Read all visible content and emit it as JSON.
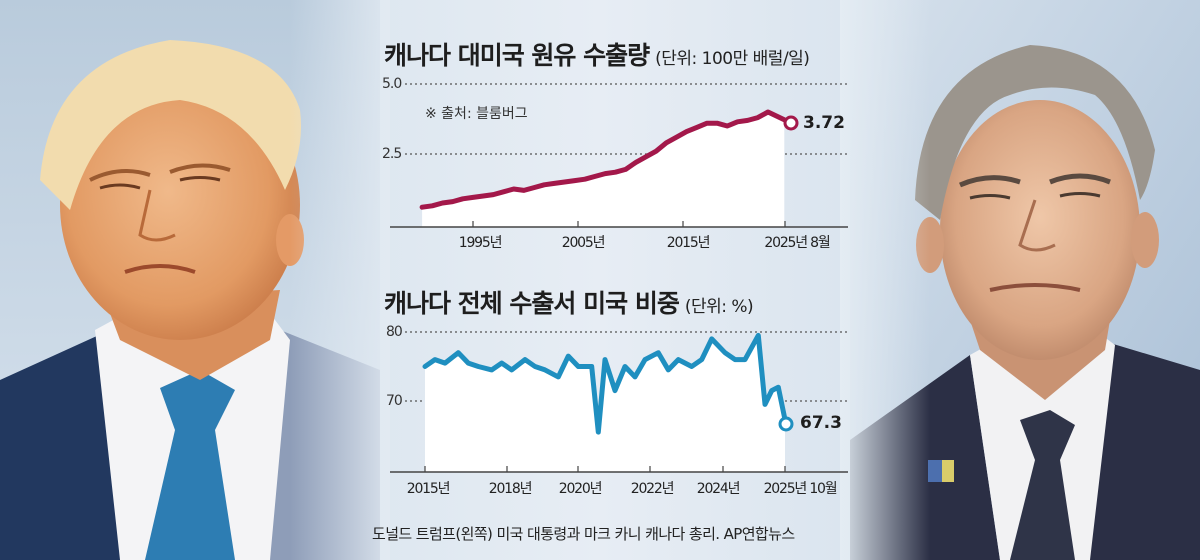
{
  "chart_data": [
    {
      "type": "area",
      "title": "캐나다 대미국 원유 수출량",
      "unit": "(단위: 100만 배럴/일)",
      "source_note": "※ 출처: 블룸버그",
      "xlabel": "",
      "ylabel": "",
      "y_ticks": [
        "5.0",
        "2.5"
      ],
      "ylim": [
        0,
        5.0
      ],
      "x_ticks": [
        "1995년",
        "2005년",
        "2015년",
        "2025년 8월"
      ],
      "grid": "dotted horizontal",
      "color": "#a3184a",
      "end_label": "3.72",
      "end_value": 3.72,
      "series": [
        {
          "name": "캐나다 대미국 원유 수출량",
          "x": [
            1990,
            1991,
            1992,
            1993,
            1994,
            1995,
            1996,
            1997,
            1998,
            1999,
            2000,
            2001,
            2002,
            2003,
            2004,
            2005,
            2006,
            2007,
            2008,
            2009,
            2010,
            2011,
            2012,
            2013,
            2014,
            2015,
            2016,
            2017,
            2018,
            2019,
            2020,
            2021,
            2022,
            2023,
            2024,
            2025.6
          ],
          "values": [
            0.6,
            0.65,
            0.75,
            0.8,
            0.9,
            0.95,
            1.0,
            1.05,
            1.15,
            1.25,
            1.2,
            1.3,
            1.4,
            1.45,
            1.5,
            1.55,
            1.6,
            1.7,
            1.8,
            1.85,
            1.95,
            2.2,
            2.4,
            2.6,
            2.9,
            3.1,
            3.3,
            3.45,
            3.6,
            3.6,
            3.5,
            3.65,
            3.7,
            3.8,
            4.0,
            3.72
          ]
        }
      ]
    },
    {
      "type": "area",
      "title": "캐나다 전체 수출서 미국 비중",
      "unit": "(단위: %)",
      "xlabel": "",
      "ylabel": "",
      "y_ticks": [
        "80",
        "70"
      ],
      "ylim": [
        60,
        80
      ],
      "x_ticks": [
        "2015년",
        "2018년",
        "2020년",
        "2022년",
        "2024년",
        "2025년 10월"
      ],
      "grid": "dotted horizontal",
      "color": "#1f8fc0",
      "end_label": "67.3",
      "end_value": 67.3,
      "series": [
        {
          "name": "캐나다 전체 수출서 미국 비중",
          "x": [
            2015.0,
            2015.3,
            2015.6,
            2016.0,
            2016.3,
            2016.6,
            2017.0,
            2017.3,
            2017.6,
            2018.0,
            2018.3,
            2018.6,
            2019.0,
            2019.3,
            2019.6,
            2020.0,
            2020.2,
            2020.4,
            2020.7,
            2021.0,
            2021.3,
            2021.6,
            2022.0,
            2022.3,
            2022.6,
            2023.0,
            2023.3,
            2023.6,
            2024.0,
            2024.3,
            2024.6,
            2025.0,
            2025.2,
            2025.4,
            2025.6,
            2025.8
          ],
          "values": [
            75.0,
            76.0,
            75.5,
            77.0,
            75.5,
            75.0,
            74.5,
            75.5,
            74.5,
            76.0,
            75.0,
            74.5,
            73.5,
            76.5,
            75.0,
            75.0,
            65.5,
            76.0,
            71.5,
            75.0,
            73.5,
            76.0,
            77.0,
            74.5,
            76.0,
            75.0,
            76.0,
            79.0,
            77.0,
            76.0,
            76.0,
            79.5,
            69.5,
            71.5,
            72.0,
            67.3
          ]
        }
      ]
    }
  ],
  "charts": {
    "top": {
      "title": "캐나다 대미국 원유 수출량",
      "unit": "(단위: 100만 배럴/일)",
      "source": "※ 출처: 블룸버그",
      "y_ticks": [
        "5.0",
        "2.5"
      ],
      "x_ticks": [
        "1995년",
        "2005년",
        "2015년",
        "2025년 8월"
      ],
      "end_label": "3.72"
    },
    "bottom": {
      "title": "캐나다 전체 수출서 미국 비중",
      "unit": "(단위: %)",
      "y_ticks": [
        "80",
        "70"
      ],
      "x_ticks": [
        "2015년",
        "2018년",
        "2020년",
        "2022년",
        "2024년",
        "2025년 10월"
      ],
      "end_label": "67.3"
    }
  },
  "caption": "도널드 트럼프(왼쪽) 미국 대통령과 마크 카니 캐나다 총리.   AP연합뉴스",
  "colors": {
    "oil_line": "#a3184a",
    "share_line": "#1f8fc0",
    "grid": "#555555",
    "background": "#dfe8f1"
  }
}
